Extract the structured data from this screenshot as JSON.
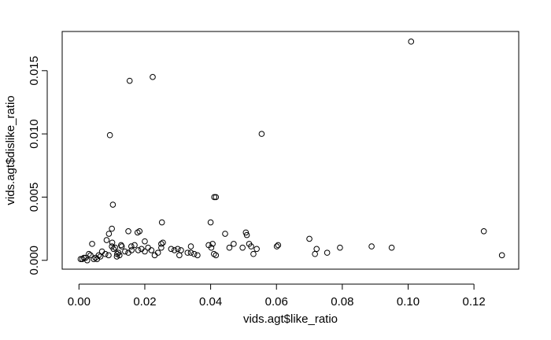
{
  "chart_data": {
    "type": "scatter",
    "title": "",
    "xlabel": "vids.agt$like_ratio",
    "ylabel": "vids.agt$dislike_ratio",
    "xlim": [
      -0.0051,
      0.1336
    ],
    "ylim": [
      -0.0007,
      0.0181
    ],
    "grid": false,
    "legend": "none",
    "x_ticks": [
      0.0,
      0.02,
      0.04,
      0.06,
      0.08,
      0.1,
      0.12
    ],
    "x_tick_labels": [
      "0.00",
      "0.02",
      "0.04",
      "0.06",
      "0.08",
      "0.10",
      "0.12"
    ],
    "y_ticks": [
      0.0,
      0.005,
      0.01,
      0.015
    ],
    "y_tick_labels": [
      "0.000",
      "0.005",
      "0.010",
      "0.015"
    ],
    "marker": "open-circle",
    "colors": {
      "points": "#000000",
      "axes": "#000000",
      "background": "#ffffff"
    },
    "series": [
      {
        "x": [
          0.1009,
          0.0154,
          0.0224,
          0.0094,
          0.0555,
          0.0103,
          0.0411,
          0.0416,
          0.04,
          0.0252,
          0.123,
          0.1285,
          0.01,
          0.015,
          0.0178,
          0.0184,
          0.0444,
          0.0507,
          0.051,
          0.07,
          0.004,
          0.0084,
          0.0091,
          0.0101,
          0.0128,
          0.0159,
          0.0169,
          0.02,
          0.021,
          0.025,
          0.0255,
          0.0394,
          0.0406,
          0.0457,
          0.047,
          0.0497,
          0.0517,
          0.0523,
          0.0601,
          0.0605,
          0.0793,
          0.0889,
          0.095,
          0.0722,
          0.0717,
          0.0754,
          0.053,
          0.054,
          0.0402,
          0.041,
          0.0416,
          0.034,
          0.035,
          0.036,
          0.033,
          0.031,
          0.03,
          0.029,
          0.028,
          0.025,
          0.024,
          0.023,
          0.022,
          0.02,
          0.019,
          0.018,
          0.016,
          0.015,
          0.014,
          0.013,
          0.012,
          0.0115,
          0.011,
          0.0105,
          0.01,
          0.009,
          0.008,
          0.007,
          0.006,
          0.005,
          0.0045,
          0.003,
          0.0025,
          0.0015,
          0.001,
          0.0005,
          0.0035,
          0.0055,
          0.0065,
          0.002,
          0.0305,
          0.034,
          0.0116,
          0.0123
        ],
        "y": [
          0.0173,
          0.0142,
          0.0145,
          0.0099,
          0.01,
          0.0044,
          0.005,
          0.005,
          0.003,
          0.003,
          0.0023,
          0.0004,
          0.0025,
          0.0023,
          0.0022,
          0.0023,
          0.0021,
          0.0022,
          0.002,
          0.0017,
          0.0013,
          0.0016,
          0.0021,
          0.0014,
          0.0012,
          0.0011,
          0.0012,
          0.0015,
          0.001,
          0.0013,
          0.0014,
          0.0012,
          0.0013,
          0.001,
          0.0013,
          0.001,
          0.0013,
          0.0011,
          0.0011,
          0.0012,
          0.001,
          0.0011,
          0.001,
          0.0009,
          0.0005,
          0.0006,
          0.0005,
          0.0009,
          0.001,
          0.0005,
          0.0004,
          0.0011,
          0.0005,
          0.0004,
          0.0006,
          0.0008,
          0.0009,
          0.0008,
          0.0009,
          0.001,
          0.0006,
          0.0004,
          0.0008,
          0.0007,
          0.0009,
          0.0008,
          0.0008,
          0.0006,
          0.0007,
          0.0011,
          0.0006,
          0.0003,
          0.001,
          0.0009,
          0.0011,
          0.0004,
          0.0005,
          0.0007,
          0.0004,
          0.0002,
          0.0001,
          0.0005,
          0.0,
          0.0002,
          0.0001,
          0.0001,
          0.0004,
          0.0001,
          0.0003,
          0.0002,
          0.0004,
          0.0006,
          0.0005,
          0.0004
        ]
      }
    ]
  }
}
